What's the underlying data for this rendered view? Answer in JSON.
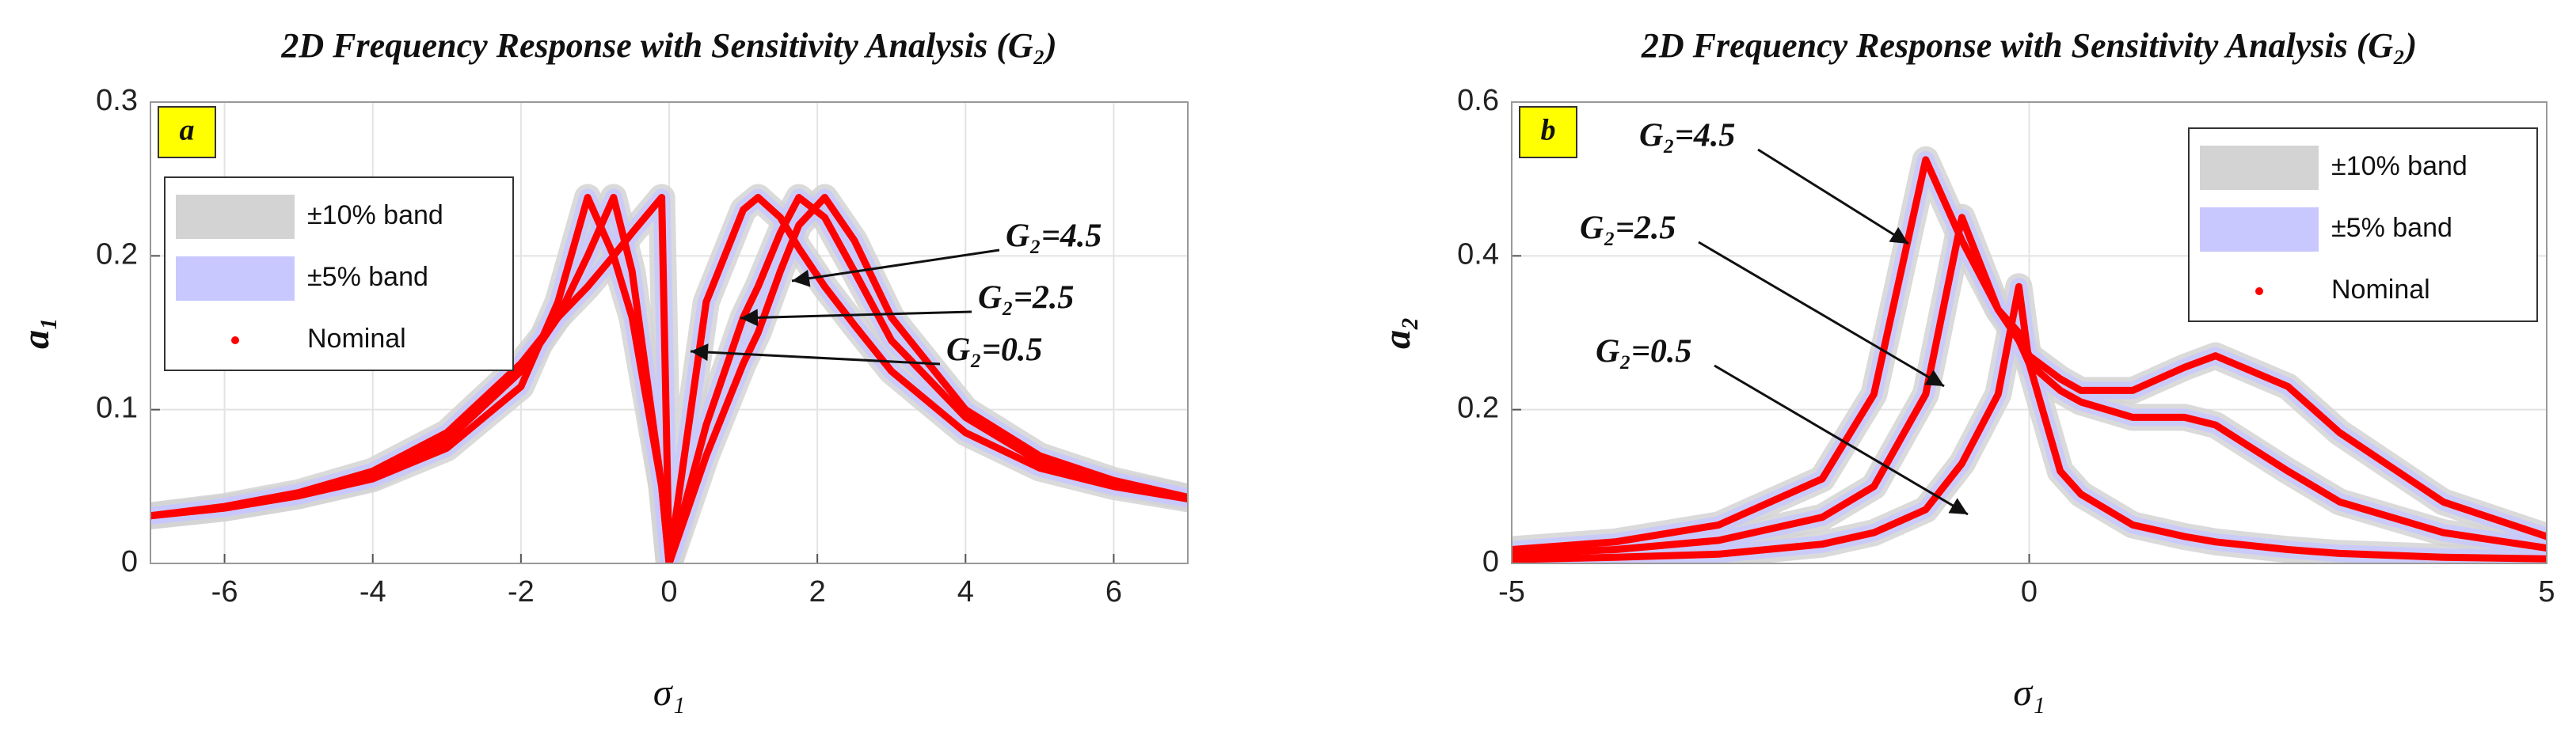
{
  "chart_data": [
    {
      "type": "line",
      "title": "2D Frequency Response with Sensitivity Analysis (G₂)",
      "panel_label": "a",
      "xlabel": "σ₁",
      "ylabel": "a₁",
      "x": [
        -7,
        -6,
        -5,
        -4,
        -3,
        -2,
        -1.5,
        -1.1,
        -0.75,
        -0.5,
        -0.1,
        0,
        0.5,
        1,
        1.2,
        1.5,
        1.75,
        2.1,
        2.5,
        3,
        4,
        5,
        6,
        7
      ],
      "series": [
        {
          "name": "G₂=4.5",
          "color": "#ff0000",
          "values": [
            0.031,
            0.036,
            0.044,
            0.055,
            0.075,
            0.115,
            0.17,
            0.238,
            0.2,
            0.16,
            0.05,
            0,
            0.07,
            0.13,
            0.15,
            0.19,
            0.22,
            0.238,
            0.21,
            0.16,
            0.1,
            0.07,
            0.054,
            0.043
          ]
        },
        {
          "name": "G₂=2.5",
          "color": "#ff0000",
          "values": [
            0.031,
            0.036,
            0.044,
            0.056,
            0.08,
            0.125,
            0.16,
            0.2,
            0.238,
            0.19,
            0.05,
            0,
            0.09,
            0.16,
            0.18,
            0.215,
            0.238,
            0.225,
            0.19,
            0.145,
            0.095,
            0.066,
            0.052,
            0.043
          ]
        },
        {
          "name": "G₂=0.5",
          "color": "#ff0000",
          "values": [
            0.031,
            0.037,
            0.046,
            0.06,
            0.085,
            0.13,
            0.16,
            0.18,
            0.2,
            0.215,
            0.238,
            0,
            0.17,
            0.23,
            0.238,
            0.225,
            0.205,
            0.18,
            0.155,
            0.125,
            0.085,
            0.062,
            0.05,
            0.042
          ]
        }
      ],
      "bands": [
        {
          "name": "±10% band",
          "color": "#d3d3d3"
        },
        {
          "name": "±5% band",
          "color": "#c8c8ff"
        }
      ],
      "nominal": {
        "name": "Nominal",
        "color": "#ff0000"
      },
      "xlim": [
        -7,
        7
      ],
      "xticks": [
        -6,
        -4,
        -2,
        0,
        2,
        4,
        6
      ],
      "ylim": [
        0,
        0.3
      ],
      "yticks": [
        0,
        0.1,
        0.2,
        0.3
      ],
      "grid": true,
      "legend": "upper left"
    },
    {
      "type": "line",
      "title": "2D Frequency Response with Sensitivity Analysis (G₂)",
      "panel_label": "b",
      "xlabel": "σ₁",
      "ylabel": "a₂",
      "x": [
        -5,
        -4,
        -3,
        -2,
        -1.5,
        -1,
        -0.65,
        -0.3,
        -0.1,
        0,
        0.3,
        0.5,
        1,
        1.5,
        1.8,
        2.5,
        3,
        4,
        5
      ],
      "series": [
        {
          "name": "G₂=4.5",
          "color": "#ff0000",
          "values": [
            0.018,
            0.028,
            0.05,
            0.11,
            0.22,
            0.525,
            0.42,
            0.33,
            0.3,
            0.27,
            0.24,
            0.225,
            0.225,
            0.255,
            0.27,
            0.23,
            0.17,
            0.08,
            0.035
          ]
        },
        {
          "name": "G₂=2.5",
          "color": "#ff0000",
          "values": [
            0.012,
            0.018,
            0.03,
            0.06,
            0.1,
            0.22,
            0.45,
            0.33,
            0.29,
            0.26,
            0.225,
            0.21,
            0.19,
            0.19,
            0.18,
            0.12,
            0.08,
            0.04,
            0.02
          ]
        },
        {
          "name": "G₂=0.5",
          "color": "#ff0000",
          "values": [
            0.005,
            0.008,
            0.012,
            0.025,
            0.04,
            0.07,
            0.13,
            0.22,
            0.36,
            0.26,
            0.12,
            0.09,
            0.05,
            0.035,
            0.028,
            0.018,
            0.013,
            0.008,
            0.006
          ]
        }
      ],
      "bands": [
        {
          "name": "±10% band",
          "color": "#d3d3d3"
        },
        {
          "name": "±5% band",
          "color": "#c8c8ff"
        }
      ],
      "nominal": {
        "name": "Nominal",
        "color": "#ff0000"
      },
      "xlim": [
        -5,
        5
      ],
      "xticks": [
        -5,
        0,
        5
      ],
      "ylim": [
        0,
        0.6
      ],
      "yticks": [
        0,
        0.2,
        0.4,
        0.6
      ],
      "grid": true,
      "legend": "upper right"
    }
  ]
}
